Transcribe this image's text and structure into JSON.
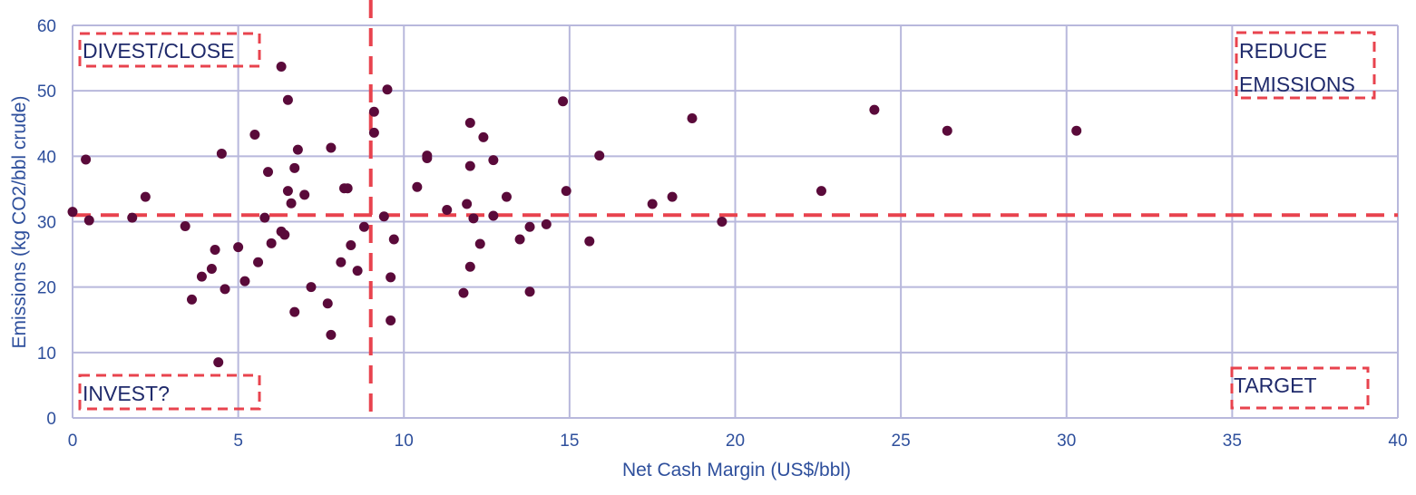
{
  "chart_data": {
    "type": "scatter",
    "xlabel": "Net Cash Margin (US$/bbl)",
    "ylabel": "Emissions (kg CO2/bbl crude)",
    "xlim": [
      0,
      40
    ],
    "ylim": [
      0,
      60
    ],
    "x_ticks": [
      "0",
      "5",
      "10",
      "15",
      "20",
      "25",
      "30",
      "35",
      "40"
    ],
    "y_ticks": [
      "0",
      "10",
      "20",
      "30",
      "40",
      "50",
      "60"
    ],
    "grid": true,
    "threshold_lines": {
      "x": 9,
      "y": 31
    },
    "quadrant_labels": [
      {
        "lines": [
          "DIVEST/CLOSE"
        ]
      },
      {
        "lines": [
          "REDUCE",
          "EMISSIONS"
        ]
      },
      {
        "lines": [
          "INVEST?"
        ]
      },
      {
        "lines": [
          "TARGET"
        ]
      }
    ],
    "colors": {
      "point": "#5a0a3a",
      "grid": "#b8b8dc",
      "threshold": "#e8434e",
      "axis_text": "#2e4f9c",
      "label_text": "#1f2a6b"
    },
    "points": [
      [
        0,
        31.5
      ],
      [
        0.4,
        39.5
      ],
      [
        0.5,
        30.2
      ],
      [
        1.8,
        30.6
      ],
      [
        2.2,
        33.8
      ],
      [
        3.4,
        29.3
      ],
      [
        3.6,
        18.1
      ],
      [
        3.9,
        21.6
      ],
      [
        4.2,
        22.8
      ],
      [
        4.3,
        25.7
      ],
      [
        4.4,
        8.5
      ],
      [
        4.5,
        40.4
      ],
      [
        4.6,
        19.7
      ],
      [
        5.0,
        26.1
      ],
      [
        5.2,
        20.9
      ],
      [
        5.5,
        43.3
      ],
      [
        5.6,
        23.8
      ],
      [
        5.8,
        30.6
      ],
      [
        5.9,
        37.6
      ],
      [
        6.0,
        26.7
      ],
      [
        6.3,
        53.7
      ],
      [
        6.3,
        28.5
      ],
      [
        6.4,
        28.0
      ],
      [
        6.5,
        34.7
      ],
      [
        6.5,
        48.6
      ],
      [
        6.6,
        32.8
      ],
      [
        6.7,
        16.2
      ],
      [
        6.7,
        38.2
      ],
      [
        6.8,
        41.0
      ],
      [
        7.0,
        34.1
      ],
      [
        7.2,
        20.0
      ],
      [
        7.7,
        17.5
      ],
      [
        7.8,
        12.7
      ],
      [
        7.8,
        41.3
      ],
      [
        8.1,
        23.8
      ],
      [
        8.2,
        35.1
      ],
      [
        8.3,
        35.1
      ],
      [
        8.4,
        26.4
      ],
      [
        8.6,
        22.5
      ],
      [
        8.8,
        29.2
      ],
      [
        9.1,
        46.8
      ],
      [
        9.1,
        43.6
      ],
      [
        9.4,
        30.8
      ],
      [
        9.5,
        50.2
      ],
      [
        9.6,
        14.9
      ],
      [
        9.6,
        21.5
      ],
      [
        9.7,
        27.3
      ],
      [
        10.4,
        35.3
      ],
      [
        10.7,
        40.1
      ],
      [
        10.7,
        39.7
      ],
      [
        11.3,
        31.8
      ],
      [
        11.8,
        19.1
      ],
      [
        11.9,
        32.7
      ],
      [
        12.0,
        45.1
      ],
      [
        12.0,
        38.5
      ],
      [
        12.0,
        23.1
      ],
      [
        12.1,
        30.5
      ],
      [
        12.3,
        26.6
      ],
      [
        12.4,
        42.9
      ],
      [
        12.7,
        39.4
      ],
      [
        12.7,
        30.9
      ],
      [
        13.1,
        33.8
      ],
      [
        13.5,
        27.3
      ],
      [
        13.8,
        29.2
      ],
      [
        13.8,
        19.3
      ],
      [
        14.3,
        29.6
      ],
      [
        14.8,
        48.4
      ],
      [
        14.9,
        34.7
      ],
      [
        15.6,
        27.0
      ],
      [
        15.9,
        40.1
      ],
      [
        17.5,
        32.7
      ],
      [
        18.1,
        33.8
      ],
      [
        18.7,
        45.8
      ],
      [
        19.6,
        30.0
      ],
      [
        22.6,
        34.7
      ],
      [
        24.2,
        47.1
      ],
      [
        26.4,
        43.9
      ],
      [
        30.3,
        43.9
      ]
    ]
  }
}
